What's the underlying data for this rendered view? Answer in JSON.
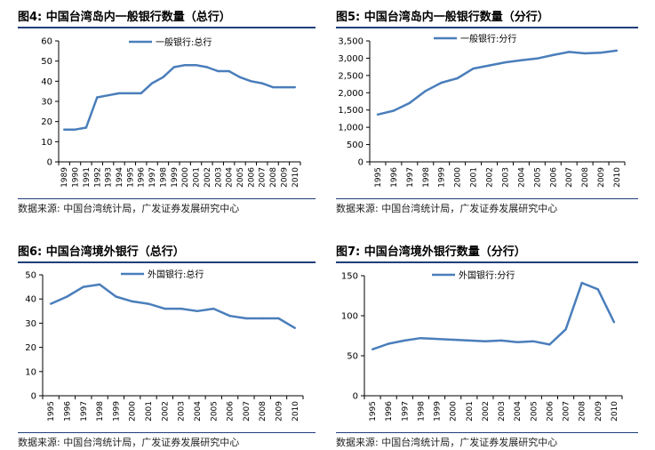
{
  "panels": [
    {
      "title": "图4:  中国台湾岛内一般银行数量（总行）",
      "source": "数据来源:  中国台湾统计局，广发证券发展研究中心",
      "chart_data": {
        "type": "line",
        "categories": [
          "1989",
          "1990",
          "1991",
          "1992",
          "1993",
          "1994",
          "1995",
          "1996",
          "1997",
          "1998",
          "1999",
          "2000",
          "2001",
          "2002",
          "2003",
          "2004",
          "2005",
          "2006",
          "2007",
          "2008",
          "2009",
          "2010"
        ],
        "series": [
          {
            "name": "一般银行:总行",
            "values": [
              16,
              16,
              17,
              32,
              33,
              34,
              34,
              34,
              39,
              42,
              47,
              48,
              48,
              47,
              45,
              45,
              42,
              40,
              39,
              37,
              37,
              37
            ]
          }
        ],
        "ylim": [
          0,
          60
        ],
        "yticks": [
          0,
          10,
          20,
          30,
          40,
          50,
          60
        ],
        "ytick_labels": [
          "0",
          "10",
          "20",
          "30",
          "40",
          "50",
          "60"
        ],
        "legend": "top-left",
        "grid": false,
        "color": "#4a7ebb"
      }
    },
    {
      "title": "图5:  中国台湾岛内一般银行数量（分行）",
      "source": "数据来源:  中国台湾统计局，广发证券发展研究中心",
      "chart_data": {
        "type": "line",
        "categories": [
          "1995",
          "1996",
          "1997",
          "1998",
          "1999",
          "2000",
          "2001",
          "2002",
          "2003",
          "2004",
          "2005",
          "2006",
          "2007",
          "2008",
          "2009",
          "2010"
        ],
        "series": [
          {
            "name": "一般银行:分行",
            "values": [
              1370,
              1480,
              1700,
              2050,
              2290,
              2420,
              2700,
              2790,
              2880,
              2940,
              2990,
              3090,
              3180,
              3140,
              3160,
              3220
            ]
          }
        ],
        "ylim": [
          0,
          3500
        ],
        "yticks": [
          0,
          500,
          1000,
          1500,
          2000,
          2500,
          3000,
          3500
        ],
        "ytick_labels": [
          "0",
          "500",
          "1,000",
          "1,500",
          "2,000",
          "2,500",
          "3,000",
          "3,500"
        ],
        "legend": "top-left",
        "grid": false,
        "color": "#4a7ebb"
      }
    },
    {
      "title": "图6:  中国台湾境外银行（总行）",
      "source": "数据来源:  中国台湾统计局，广发证券发展研究中心",
      "chart_data": {
        "type": "line",
        "categories": [
          "1995",
          "1996",
          "1997",
          "1998",
          "1999",
          "2000",
          "2001",
          "2002",
          "2003",
          "2004",
          "2005",
          "2006",
          "2007",
          "2008",
          "2009",
          "2010"
        ],
        "series": [
          {
            "name": "外国银行:总行",
            "values": [
              38,
              41,
              45,
              46,
              41,
              39,
              38,
              36,
              36,
              35,
              36,
              33,
              32,
              32,
              32,
              28
            ]
          }
        ],
        "ylim": [
          0,
          50
        ],
        "yticks": [
          0,
          10,
          20,
          30,
          40,
          50
        ],
        "ytick_labels": [
          "0",
          "10",
          "20",
          "30",
          "40",
          "50"
        ],
        "legend": "top-left",
        "grid": false,
        "color": "#4a7ebb"
      }
    },
    {
      "title": "图7:  中国台湾境外银行数量（分行）",
      "source": "数据来源:  中国台湾统计局，广发证券发展研究中心",
      "chart_data": {
        "type": "line",
        "categories": [
          "1995",
          "1996",
          "1997",
          "1998",
          "1999",
          "2000",
          "2001",
          "2002",
          "2003",
          "2004",
          "2005",
          "2006",
          "2007",
          "2008",
          "2009",
          "2010"
        ],
        "series": [
          {
            "name": "外国银行:分行",
            "values": [
              58,
              65,
              69,
              72,
              71,
              70,
              69,
              68,
              69,
              67,
              68,
              64,
              83,
              141,
              133,
              92
            ]
          }
        ],
        "ylim": [
          0,
          150
        ],
        "yticks": [
          0,
          50,
          100,
          150
        ],
        "ytick_labels": [
          "0",
          "50",
          "100",
          "150"
        ],
        "legend": "top-left",
        "grid": false,
        "color": "#4a7ebb"
      }
    }
  ]
}
